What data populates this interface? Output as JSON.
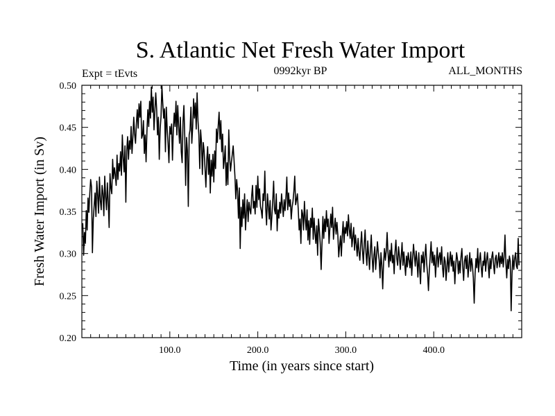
{
  "chart_data": {
    "type": "line",
    "title": "S. Atlantic Net Fresh Water Import",
    "subtitle_left": "Expt = tEvts",
    "subtitle_center": "0992kyr BP",
    "subtitle_right": "ALL_MONTHS",
    "xlabel": "Time (in years since start)",
    "ylabel": "Fresh Water Import (in Sv)",
    "xlim": [
      0,
      500
    ],
    "ylim": [
      0.2,
      0.5
    ],
    "x_ticks": [
      100,
      200,
      300,
      400
    ],
    "x_tick_labels": [
      "100.0",
      "200.0",
      "300.0",
      "400.0"
    ],
    "y_ticks": [
      0.2,
      0.25,
      0.3,
      0.35,
      0.4,
      0.45,
      0.5
    ],
    "y_tick_labels": [
      "0.20",
      "0.25",
      "0.30",
      "0.35",
      "0.40",
      "0.45",
      "0.50"
    ],
    "series": [
      {
        "name": "Net Fresh Water Import",
        "x_start": 1,
        "x_step": 1,
        "values": [
          0.336,
          0.298,
          0.325,
          0.312,
          0.351,
          0.328,
          0.366,
          0.349,
          0.371,
          0.388,
          0.379,
          0.301,
          0.341,
          0.357,
          0.372,
          0.344,
          0.386,
          0.369,
          0.348,
          0.391,
          0.363,
          0.352,
          0.381,
          0.371,
          0.345,
          0.392,
          0.367,
          0.352,
          0.384,
          0.361,
          0.331,
          0.395,
          0.378,
          0.371,
          0.412,
          0.389,
          0.402,
          0.394,
          0.381,
          0.417,
          0.388,
          0.407,
          0.398,
          0.421,
          0.393,
          0.441,
          0.414,
          0.397,
          0.428,
          0.361,
          0.422,
          0.439,
          0.412,
          0.434,
          0.424,
          0.451,
          0.419,
          0.438,
          0.462,
          0.442,
          0.431,
          0.455,
          0.471,
          0.449,
          0.478,
          0.462,
          0.481,
          0.437,
          0.441,
          0.458,
          0.419,
          0.441,
          0.409,
          0.446,
          0.471,
          0.451,
          0.481,
          0.461,
          0.498,
          0.468,
          0.486,
          0.447,
          0.469,
          0.491,
          0.472,
          0.441,
          0.462,
          0.412,
          0.448,
          0.463,
          0.499,
          0.478,
          0.461,
          0.472,
          0.421,
          0.474,
          0.448,
          0.431,
          0.408,
          0.451,
          0.442,
          0.454,
          0.411,
          0.448,
          0.467,
          0.451,
          0.481,
          0.441,
          0.476,
          0.451,
          0.431,
          0.462,
          0.421,
          0.408,
          0.457,
          0.476,
          0.438,
          0.381,
          0.438,
          0.422,
          0.356,
          0.441,
          0.447,
          0.474,
          0.431,
          0.451,
          0.484,
          0.461,
          0.479,
          0.448,
          0.491,
          0.458,
          0.441,
          0.401,
          0.447,
          0.432,
          0.394,
          0.432,
          0.422,
          0.401,
          0.379,
          0.412,
          0.427,
          0.394,
          0.418,
          0.372,
          0.411,
          0.392,
          0.418,
          0.385,
          0.422,
          0.401,
          0.448,
          0.432,
          0.452,
          0.468,
          0.436,
          0.458,
          0.421,
          0.442,
          0.401,
          0.412,
          0.428,
          0.381,
          0.408,
          0.382,
          0.447,
          0.414,
          0.398,
          0.409,
          0.418,
          0.428,
          0.411,
          0.392,
          0.365,
          0.388,
          0.374,
          0.342,
          0.378,
          0.306,
          0.355,
          0.332,
          0.364,
          0.342,
          0.371,
          0.328,
          0.348,
          0.364,
          0.338,
          0.361,
          0.352,
          0.347,
          0.368,
          0.381,
          0.354,
          0.362,
          0.347,
          0.381,
          0.355,
          0.392,
          0.364,
          0.377,
          0.356,
          0.351,
          0.342,
          0.371,
          0.363,
          0.398,
          0.354,
          0.334,
          0.371,
          0.356,
          0.341,
          0.363,
          0.328,
          0.344,
          0.363,
          0.386,
          0.352,
          0.347,
          0.371,
          0.327,
          0.352,
          0.342,
          0.361,
          0.348,
          0.371,
          0.357,
          0.344,
          0.364,
          0.351,
          0.367,
          0.391,
          0.352,
          0.372,
          0.356,
          0.364,
          0.341,
          0.355,
          0.362,
          0.374,
          0.392,
          0.358,
          0.364,
          0.371,
          0.352,
          0.328,
          0.341,
          0.312,
          0.352,
          0.347,
          0.328,
          0.362,
          0.341,
          0.328,
          0.352,
          0.316,
          0.339,
          0.311,
          0.342,
          0.331,
          0.354,
          0.317,
          0.342,
          0.324,
          0.312,
          0.333,
          0.298,
          0.341,
          0.328,
          0.311,
          0.281,
          0.312,
          0.344,
          0.318,
          0.341,
          0.326,
          0.351,
          0.332,
          0.341,
          0.312,
          0.331,
          0.347,
          0.331,
          0.355,
          0.317,
          0.331,
          0.342,
          0.323,
          0.337,
          0.322,
          0.296,
          0.309,
          0.321,
          0.297,
          0.322,
          0.338,
          0.313,
          0.331,
          0.324,
          0.338,
          0.321,
          0.346,
          0.329,
          0.318,
          0.336,
          0.308,
          0.319,
          0.331,
          0.304,
          0.322,
          0.311,
          0.297,
          0.318,
          0.302,
          0.292,
          0.311,
          0.326,
          0.304,
          0.288,
          0.312,
          0.328,
          0.301,
          0.286,
          0.315,
          0.298,
          0.281,
          0.304,
          0.322,
          0.296,
          0.278,
          0.298,
          0.308,
          0.281,
          0.297,
          0.314,
          0.301,
          0.292,
          0.271,
          0.301,
          0.286,
          0.258,
          0.289,
          0.306,
          0.292,
          0.303,
          0.325,
          0.301,
          0.284,
          0.304,
          0.291,
          0.312,
          0.289,
          0.298,
          0.276,
          0.302,
          0.316,
          0.294,
          0.286,
          0.308,
          0.297,
          0.281,
          0.296,
          0.313,
          0.286,
          0.302,
          0.288,
          0.274,
          0.297,
          0.284,
          0.301,
          0.292,
          0.283,
          0.302,
          0.274,
          0.294,
          0.311,
          0.298,
          0.285,
          0.303,
          0.291,
          0.272,
          0.301,
          0.281,
          0.264,
          0.298,
          0.289,
          0.302,
          0.278,
          0.296,
          0.311,
          0.288,
          0.276,
          0.256,
          0.281,
          0.297,
          0.314,
          0.289,
          0.302,
          0.286,
          0.298,
          0.272,
          0.291,
          0.307,
          0.284,
          0.296,
          0.301,
          0.287,
          0.308,
          0.284,
          0.272,
          0.296,
          0.291,
          0.268,
          0.284,
          0.301,
          0.278,
          0.292,
          0.302,
          0.285,
          0.298,
          0.279,
          0.291,
          0.264,
          0.286,
          0.301,
          0.293,
          0.276,
          0.291,
          0.277,
          0.296,
          0.306,
          0.284,
          0.268,
          0.291,
          0.297,
          0.282,
          0.298,
          0.272,
          0.286,
          0.301,
          0.279,
          0.294,
          0.286,
          0.271,
          0.241,
          0.276,
          0.294,
          0.283,
          0.306,
          0.278,
          0.292,
          0.301,
          0.284,
          0.272,
          0.291,
          0.286,
          0.302,
          0.279,
          0.292,
          0.301,
          0.286,
          0.271,
          0.294,
          0.282,
          0.296,
          0.302,
          0.287,
          0.276,
          0.294,
          0.298,
          0.283,
          0.291,
          0.301,
          0.284,
          0.297,
          0.288,
          0.301,
          0.284,
          0.296,
          0.322,
          0.289,
          0.271,
          0.293,
          0.282,
          0.297,
          0.291,
          0.232,
          0.276,
          0.298,
          0.281,
          0.294,
          0.301,
          0.285,
          0.282,
          0.318,
          0.286
        ]
      }
    ]
  }
}
